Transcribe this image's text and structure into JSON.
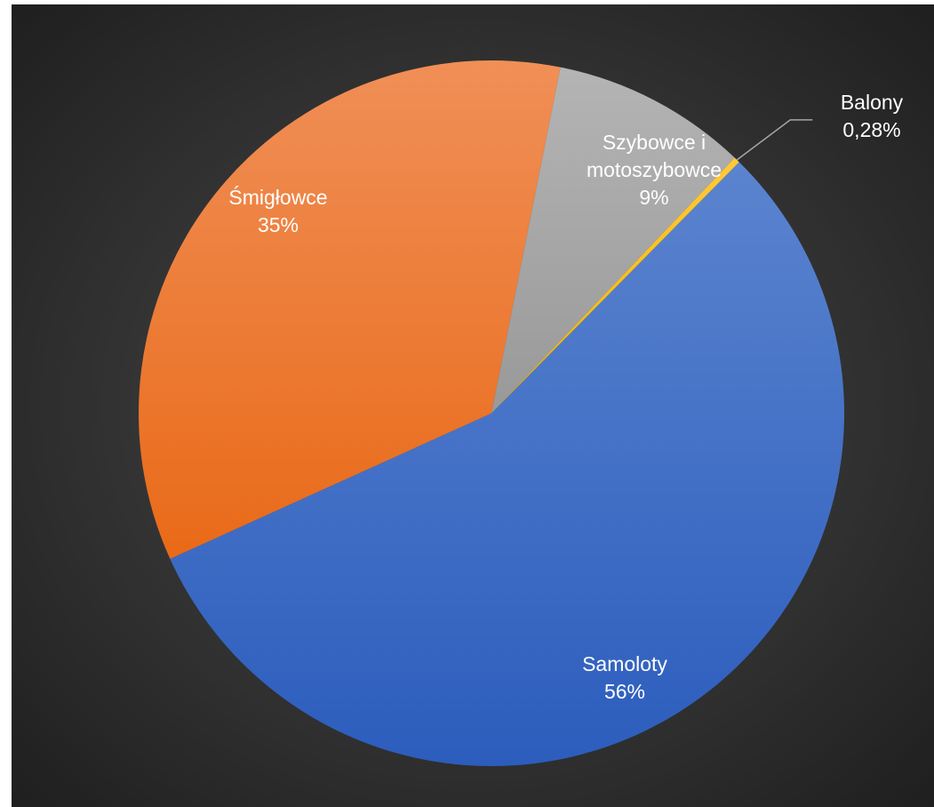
{
  "chart_data": {
    "type": "pie",
    "title": "",
    "categories": [
      "Samoloty",
      "Śmigłowce",
      "Szybowce i motoszybowce",
      "Balony"
    ],
    "values": [
      56,
      35,
      9,
      0.28
    ],
    "labels": [
      {
        "lines": [
          "Samoloty",
          "56%"
        ]
      },
      {
        "lines": [
          "Śmigłowce",
          "35%"
        ]
      },
      {
        "lines": [
          "Szybowce i",
          "motoszybowce",
          "9%"
        ]
      },
      {
        "lines": [
          "Balony",
          "0,28%"
        ]
      }
    ],
    "colors": [
      "#4472C4",
      "#ED7D31",
      "#A5A5A5",
      "#FFC000"
    ],
    "legend": "none",
    "background": "dark-radial-gradient"
  }
}
